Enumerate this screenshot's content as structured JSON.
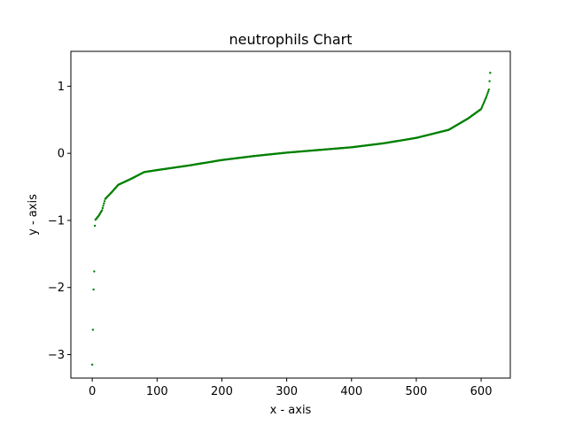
{
  "chart_data": {
    "type": "scatter",
    "title": "neutrophils Chart",
    "xlabel": "x - axis",
    "ylabel": "y - axis",
    "xlim": [
      -33,
      645
    ],
    "ylim": [
      -3.35,
      1.52
    ],
    "xticks": [
      0,
      100,
      200,
      300,
      400,
      500,
      600
    ],
    "xtick_labels": [
      "0",
      "100",
      "200",
      "300",
      "400",
      "500",
      "600"
    ],
    "yticks": [
      -3,
      -2,
      -1,
      0,
      1
    ],
    "ytick_labels": [
      "−3",
      "−2",
      "−1",
      "0",
      "1"
    ],
    "grid": false,
    "legend": "none",
    "series": [
      {
        "color": "#008000",
        "marker": "point",
        "n_points": 615,
        "curve_points": [
          {
            "x": 0,
            "y": -3.15
          },
          {
            "x": 1,
            "y": -2.63
          },
          {
            "x": 2,
            "y": -2.03
          },
          {
            "x": 3,
            "y": -1.76
          },
          {
            "x": 4,
            "y": -1.08
          },
          {
            "x": 5,
            "y": -0.99
          },
          {
            "x": 10,
            "y": -0.93
          },
          {
            "x": 15,
            "y": -0.85
          },
          {
            "x": 20,
            "y": -0.68
          },
          {
            "x": 30,
            "y": -0.58
          },
          {
            "x": 40,
            "y": -0.47
          },
          {
            "x": 60,
            "y": -0.38
          },
          {
            "x": 80,
            "y": -0.28
          },
          {
            "x": 100,
            "y": -0.25
          },
          {
            "x": 150,
            "y": -0.18
          },
          {
            "x": 200,
            "y": -0.1
          },
          {
            "x": 250,
            "y": -0.04
          },
          {
            "x": 300,
            "y": 0.01
          },
          {
            "x": 350,
            "y": 0.05
          },
          {
            "x": 400,
            "y": 0.09
          },
          {
            "x": 450,
            "y": 0.15
          },
          {
            "x": 500,
            "y": 0.23
          },
          {
            "x": 550,
            "y": 0.35
          },
          {
            "x": 580,
            "y": 0.52
          },
          {
            "x": 600,
            "y": 0.66
          },
          {
            "x": 608,
            "y": 0.84
          },
          {
            "x": 612,
            "y": 0.95
          },
          {
            "x": 614,
            "y": 1.2
          },
          {
            "x": 615,
            "y": 1.32
          }
        ]
      }
    ]
  }
}
